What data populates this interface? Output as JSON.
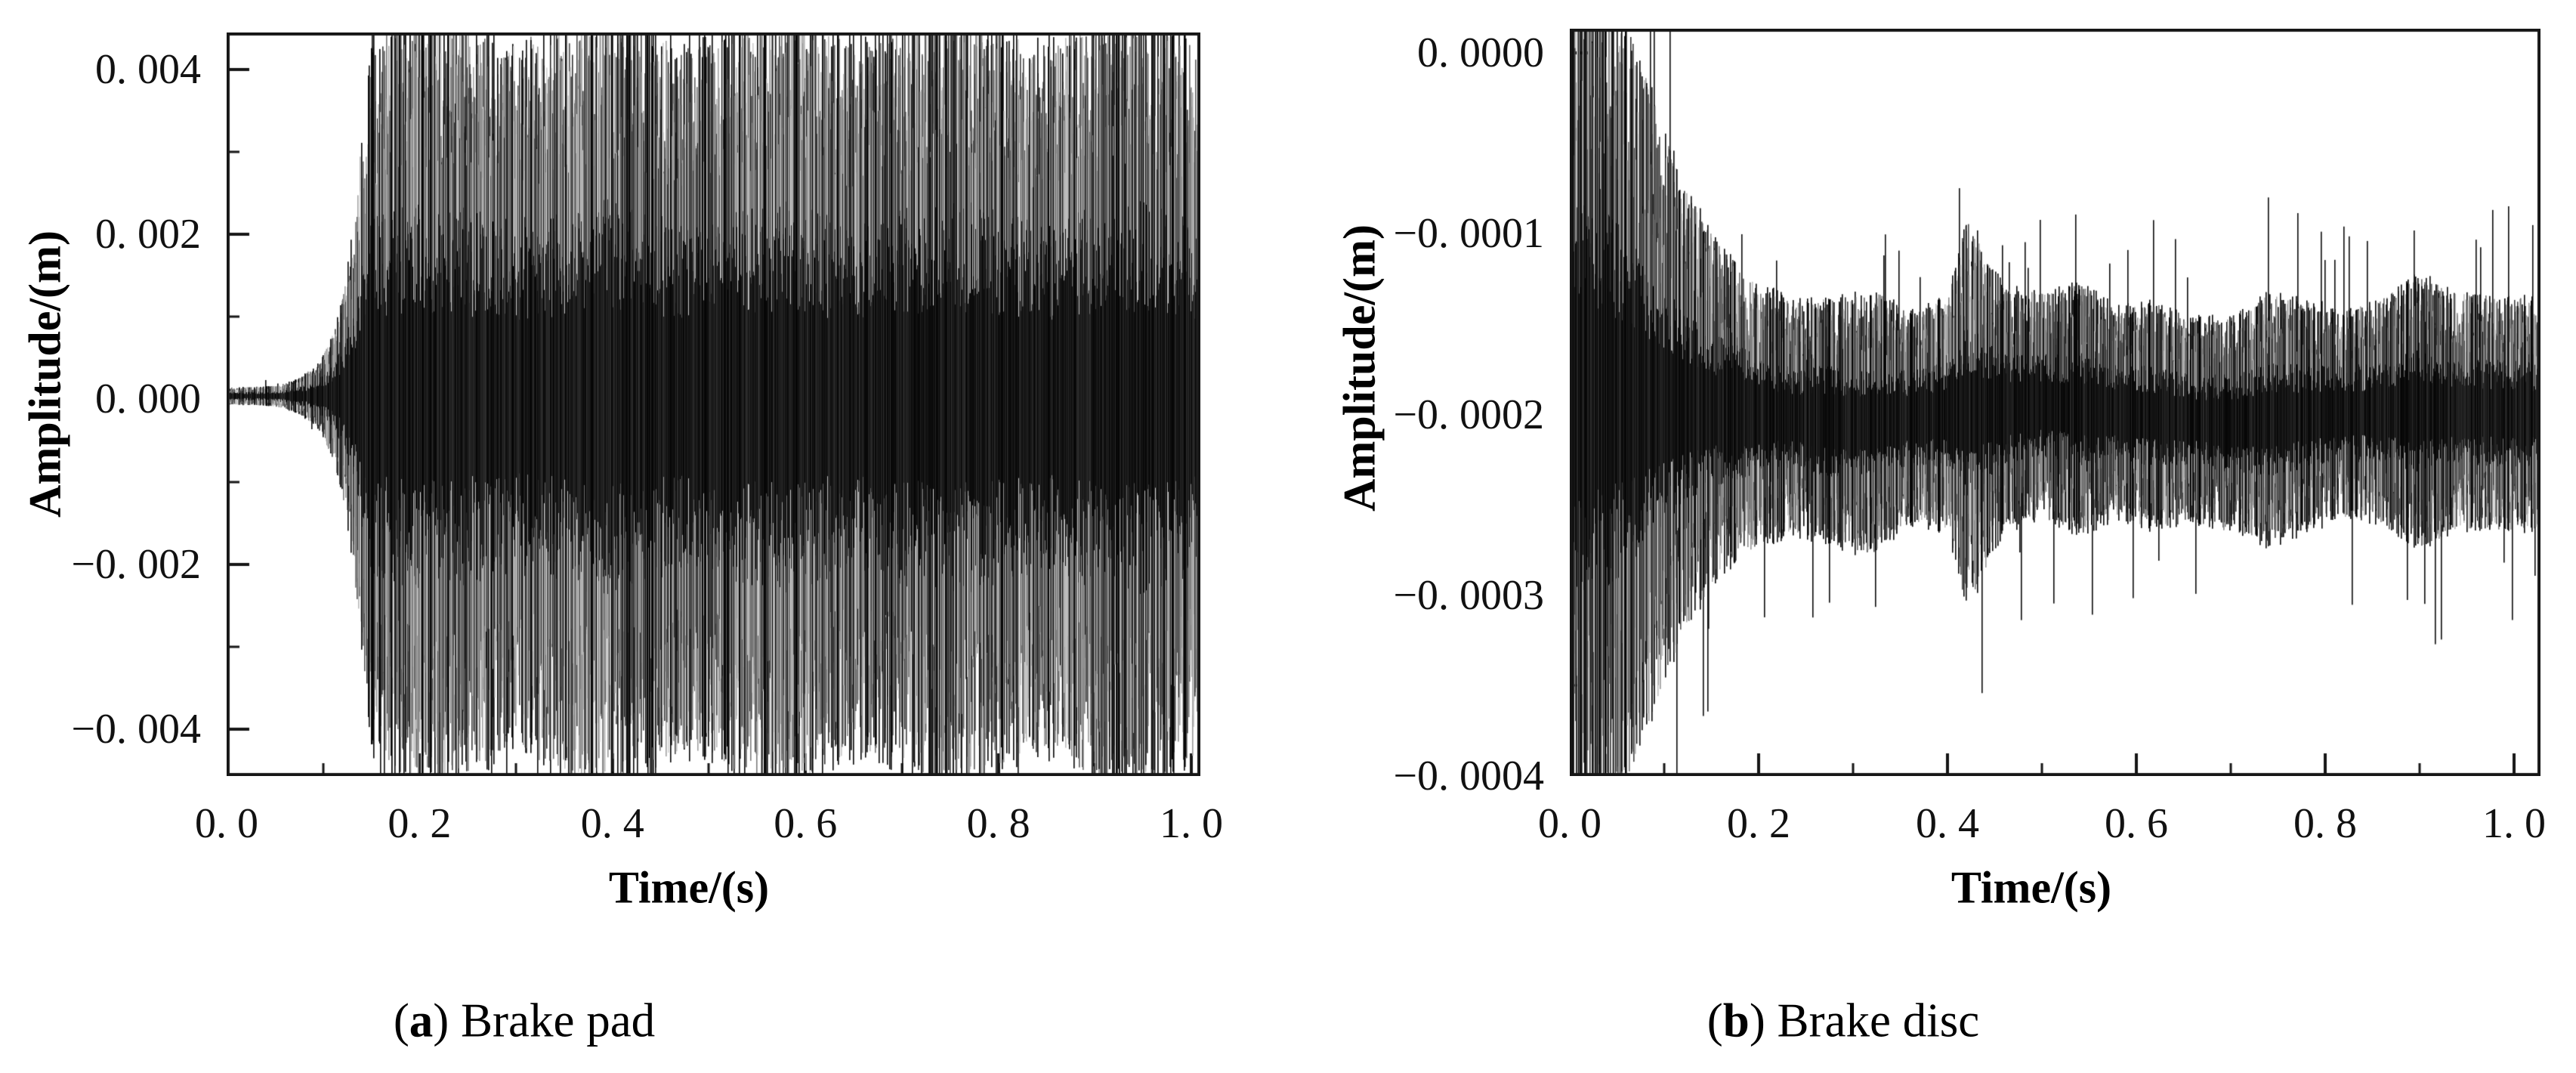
{
  "chart_data": [
    {
      "type": "line",
      "title": "",
      "xlabel": "Time/(s)",
      "ylabel": "Amplitude/(m)",
      "caption": {
        "prefix": "(",
        "letter": "a",
        "rest": ") Brake pad"
      },
      "legend": null,
      "grid": false,
      "xlim": [
        0,
        1.0094
      ],
      "ylim": [
        -0.00457,
        0.00445
      ],
      "x_ticks": [
        {
          "v": 0.0,
          "label": "0. 0"
        },
        {
          "v": 0.2,
          "label": "0. 2"
        },
        {
          "v": 0.4,
          "label": "0. 4"
        },
        {
          "v": 0.6,
          "label": "0. 6"
        },
        {
          "v": 0.8,
          "label": "0. 8"
        },
        {
          "v": 1.0,
          "label": "1. 0"
        }
      ],
      "x_minor": [
        0.1,
        0.3,
        0.5,
        0.7,
        0.9
      ],
      "y_ticks": [
        {
          "v": 0.004,
          "label": "0. 004"
        },
        {
          "v": 0.002,
          "label": "0. 002"
        },
        {
          "v": 0.0,
          "label": "0. 000"
        },
        {
          "v": -0.002,
          "label": "−0. 002"
        },
        {
          "v": -0.004,
          "label": "−0. 004"
        }
      ],
      "y_minor": [
        0.003,
        0.001,
        -0.001,
        -0.003
      ],
      "signal": {
        "mean": {
          "x": [
            0,
            1.01
          ],
          "v": [
            4e-05,
            2e-05
          ]
        },
        "envelope": {
          "x": [
            0,
            0.02,
            0.04,
            0.05,
            0.06,
            0.07,
            0.08,
            0.09,
            0.1,
            0.11,
            0.12,
            0.13,
            0.14,
            0.15,
            0.17,
            0.2,
            0.3,
            0.4,
            0.5,
            0.6,
            0.7,
            0.8,
            0.9,
            1.0,
            1.01
          ],
          "amp": [
            0.0001,
            0.0001,
            0.00011,
            0.00012,
            0.00015,
            0.00019,
            0.00026,
            0.00036,
            0.00052,
            0.0008,
            0.00125,
            0.002,
            0.0032,
            0.0043,
            0.0044,
            0.00438,
            0.00442,
            0.00445,
            0.00438,
            0.0044,
            0.00444,
            0.0044,
            0.00442,
            0.0044,
            0.0044
          ]
        },
        "render": {
          "seed": 20240,
          "skip": 0.13,
          "stroke_gray": [
            40,
            210
          ],
          "core_gray": [
            8,
            48
          ],
          "jitter": [
            0.6,
            1.03
          ],
          "core": [
            0.22,
            0.52
          ],
          "spike_prob": 0.2,
          "spike": [
            0.97,
            1.06
          ],
          "outlier_prob": 0.03,
          "outlier": [
            1.15,
            1.9
          ],
          "beat_freq": 5.5,
          "beat_amp": 0.05
        }
      }
    },
    {
      "type": "line",
      "title": "",
      "xlabel": "Time/(s)",
      "ylabel": "Amplitude/(m)",
      "caption": {
        "prefix": "(",
        "letter": "b",
        "rest": ") Brake disc"
      },
      "legend": null,
      "grid": false,
      "xlim": [
        0,
        1.028
      ],
      "ylim": [
        -0.0004,
        1.34e-05
      ],
      "x_ticks": [
        {
          "v": 0.0,
          "label": "0. 0"
        },
        {
          "v": 0.2,
          "label": "0. 2"
        },
        {
          "v": 0.4,
          "label": "0. 4"
        },
        {
          "v": 0.6,
          "label": "0. 6"
        },
        {
          "v": 0.8,
          "label": "0. 8"
        },
        {
          "v": 1.0,
          "label": "1. 0"
        }
      ],
      "x_minor": [
        0.1,
        0.3,
        0.5,
        0.7,
        0.9
      ],
      "y_ticks": [
        {
          "v": 0.0,
          "label": "0. 0000"
        },
        {
          "v": -0.0001,
          "label": "−0. 0001"
        },
        {
          "v": -0.0002,
          "label": "−0. 0002"
        },
        {
          "v": -0.0003,
          "label": "−0. 0003"
        },
        {
          "v": -0.0004,
          "label": "−0. 0004"
        }
      ],
      "y_minor": [
        -5e-05,
        -0.00015,
        -0.00025,
        -0.00035
      ],
      "signal": {
        "mean": {
          "x": [
            0,
            0.1,
            0.2,
            0.3,
            0.4,
            0.5,
            0.6,
            0.7,
            0.8,
            0.9,
            1.03
          ],
          "v": [
            -0.00019,
            -0.000195,
            -0.0002,
            -0.000205,
            -0.0002,
            -0.000195,
            -0.0002,
            -0.000205,
            -0.0002,
            -0.000198,
            -0.0002
          ]
        },
        "envelope": {
          "x": [
            0,
            0.02,
            0.05,
            0.08,
            0.1,
            0.13,
            0.16,
            0.2,
            0.24,
            0.28,
            0.32,
            0.36,
            0.4,
            0.42,
            0.44,
            0.46,
            0.5,
            0.54,
            0.58,
            0.62,
            0.66,
            0.7,
            0.74,
            0.78,
            0.82,
            0.86,
            0.9,
            0.94,
            1.03
          ],
          "amp": [
            0.00021,
            0.00021,
            0.00019,
            0.00016,
            0.00013,
            0.0001,
            8e-05,
            6.5e-05,
            6e-05,
            6.5e-05,
            7e-05,
            5.5e-05,
            6e-05,
            0.0001,
            8e-05,
            6e-05,
            5.5e-05,
            6e-05,
            5e-05,
            5.5e-05,
            5e-05,
            5.5e-05,
            6.5e-05,
            6e-05,
            5.5e-05,
            6e-05,
            7e-05,
            6e-05,
            5.5e-05
          ]
        },
        "render": {
          "seed": 911,
          "skip": 0.12,
          "stroke_gray": [
            35,
            200
          ],
          "core_gray": [
            8,
            45
          ],
          "jitter": [
            0.55,
            1.1
          ],
          "core": [
            0.22,
            0.5
          ],
          "spike_prob": 0.22,
          "spike": [
            1.0,
            1.14
          ],
          "outlier_prob": 0.05,
          "outlier": [
            1.3,
            2.0
          ],
          "beat_freq": 2.0,
          "beat_amp": 0.05
        }
      }
    }
  ]
}
